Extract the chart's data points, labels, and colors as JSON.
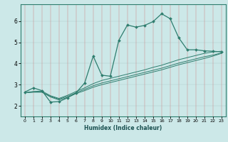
{
  "xlabel": "Humidex (Indice chaleur)",
  "ylabel": "",
  "bg_color": "#cce8e8",
  "grid_color": "#b0cccc",
  "line_color": "#2e7d6e",
  "xlim": [
    -0.5,
    23.5
  ],
  "ylim": [
    1.5,
    6.8
  ],
  "xticks": [
    0,
    1,
    2,
    3,
    4,
    5,
    6,
    7,
    8,
    9,
    10,
    11,
    12,
    13,
    14,
    15,
    16,
    17,
    18,
    19,
    20,
    21,
    22,
    23
  ],
  "yticks": [
    2,
    3,
    4,
    5,
    6
  ],
  "curve1_x": [
    0,
    1,
    2,
    3,
    4,
    5,
    6,
    7,
    8,
    9,
    10,
    11,
    12,
    13,
    14,
    15,
    16,
    17,
    18,
    19,
    20,
    21,
    22,
    23
  ],
  "curve1_y": [
    2.65,
    2.85,
    2.72,
    2.18,
    2.2,
    2.38,
    2.62,
    3.08,
    4.35,
    3.45,
    3.4,
    5.1,
    5.82,
    5.72,
    5.8,
    5.98,
    6.35,
    6.12,
    5.22,
    4.65,
    4.65,
    4.6,
    4.58,
    4.55
  ],
  "curve2_x": [
    0,
    1,
    2,
    3,
    4,
    5,
    6,
    7,
    8,
    9,
    10,
    11,
    12,
    13,
    14,
    15,
    16,
    17,
    18,
    19,
    20,
    21,
    22,
    23
  ],
  "curve2_y": [
    2.62,
    2.68,
    2.7,
    2.48,
    2.35,
    2.5,
    2.68,
    2.85,
    3.05,
    3.2,
    3.3,
    3.4,
    3.5,
    3.6,
    3.7,
    3.82,
    3.92,
    4.05,
    4.18,
    4.28,
    4.38,
    4.48,
    4.55,
    4.58
  ],
  "curve3_x": [
    0,
    1,
    2,
    3,
    4,
    5,
    6,
    7,
    8,
    9,
    10,
    11,
    12,
    13,
    14,
    15,
    16,
    17,
    18,
    19,
    20,
    21,
    22,
    23
  ],
  "curve3_y": [
    2.62,
    2.65,
    2.65,
    2.45,
    2.32,
    2.45,
    2.62,
    2.78,
    2.95,
    3.08,
    3.18,
    3.28,
    3.38,
    3.48,
    3.58,
    3.68,
    3.78,
    3.9,
    4.02,
    4.12,
    4.22,
    4.32,
    4.4,
    4.5
  ],
  "curve4_x": [
    0,
    1,
    2,
    3,
    4,
    5,
    6,
    7,
    8,
    9,
    10,
    11,
    12,
    13,
    14,
    15,
    16,
    17,
    18,
    19,
    20,
    21,
    22,
    23
  ],
  "curve4_y": [
    2.62,
    2.65,
    2.65,
    2.42,
    2.28,
    2.4,
    2.58,
    2.72,
    2.88,
    3.0,
    3.1,
    3.2,
    3.3,
    3.4,
    3.5,
    3.6,
    3.7,
    3.82,
    3.94,
    4.04,
    4.14,
    4.24,
    4.35,
    4.48
  ]
}
